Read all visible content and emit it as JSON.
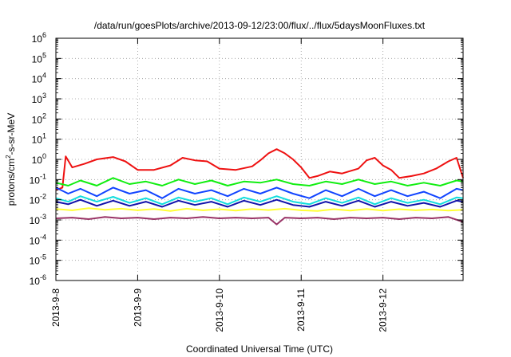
{
  "chart_data": {
    "type": "line",
    "title": "/data/run/goesPlots/archive/2013-09-12/23:00/flux/../flux/5daysMoonFluxes.txt",
    "xlabel": "Coordinated Universal Time (UTC)",
    "ylabel": {
      "base": "protons/cm",
      "sup": "2",
      "rest": "-s-sr-MeV"
    },
    "yscale": "log",
    "ylim_exp": [
      -6,
      6
    ],
    "y_ticks": [
      {
        "base": "10",
        "exp": "-6"
      },
      {
        "base": "10",
        "exp": "-5"
      },
      {
        "base": "10",
        "exp": "-4"
      },
      {
        "base": "10",
        "exp": "-3"
      },
      {
        "base": "10",
        "exp": "-2"
      },
      {
        "base": "10",
        "exp": "-1"
      },
      {
        "base": "10",
        "exp": "0"
      },
      {
        "base": "10",
        "exp": "1"
      },
      {
        "base": "10",
        "exp": "2"
      },
      {
        "base": "10",
        "exp": "3"
      },
      {
        "base": "10",
        "exp": "4"
      },
      {
        "base": "10",
        "exp": "5"
      },
      {
        "base": "10",
        "exp": "6"
      }
    ],
    "x_range_days": [
      0,
      4.98
    ],
    "x_ticks": [
      {
        "label": "2013-9-8",
        "day": 0
      },
      {
        "label": "2013-9-9",
        "day": 1
      },
      {
        "label": "2013-9-10",
        "day": 2
      },
      {
        "label": "2013-9-11",
        "day": 3
      },
      {
        "label": "2013-9-12",
        "day": 4
      }
    ],
    "grid": true,
    "series": [
      {
        "color": "#ee1111",
        "x": [
          0.0,
          0.08,
          0.12,
          0.2,
          0.35,
          0.5,
          0.7,
          0.85,
          1.0,
          1.2,
          1.4,
          1.55,
          1.7,
          1.85,
          2.0,
          2.2,
          2.4,
          2.5,
          2.6,
          2.7,
          2.8,
          2.9,
          3.0,
          3.1,
          3.2,
          3.35,
          3.5,
          3.7,
          3.8,
          3.9,
          4.0,
          4.1,
          4.2,
          4.35,
          4.5,
          4.65,
          4.8,
          4.9,
          4.98
        ],
        "y": [
          0.03,
          0.04,
          1.4,
          0.4,
          0.6,
          1.0,
          1.3,
          0.8,
          0.3,
          0.3,
          0.5,
          1.2,
          0.9,
          0.8,
          0.35,
          0.3,
          0.45,
          0.9,
          2.0,
          3.2,
          2.0,
          1.0,
          0.4,
          0.12,
          0.15,
          0.25,
          0.2,
          0.35,
          0.9,
          1.2,
          0.5,
          0.3,
          0.12,
          0.15,
          0.2,
          0.35,
          0.8,
          1.2,
          0.12
        ]
      },
      {
        "color": "#11ee11",
        "x": [
          0.0,
          0.15,
          0.3,
          0.5,
          0.7,
          0.9,
          1.1,
          1.3,
          1.5,
          1.7,
          1.9,
          2.1,
          2.3,
          2.5,
          2.7,
          2.9,
          3.1,
          3.3,
          3.5,
          3.7,
          3.9,
          4.1,
          4.3,
          4.5,
          4.7,
          4.9,
          4.98
        ],
        "y": [
          0.07,
          0.05,
          0.09,
          0.05,
          0.12,
          0.06,
          0.08,
          0.05,
          0.1,
          0.06,
          0.09,
          0.05,
          0.08,
          0.07,
          0.1,
          0.06,
          0.05,
          0.08,
          0.06,
          0.1,
          0.06,
          0.08,
          0.05,
          0.07,
          0.05,
          0.09,
          0.08
        ]
      },
      {
        "color": "#1144ff",
        "x": [
          0.0,
          0.15,
          0.3,
          0.5,
          0.7,
          0.9,
          1.1,
          1.3,
          1.5,
          1.7,
          1.9,
          2.1,
          2.3,
          2.5,
          2.7,
          2.9,
          3.1,
          3.3,
          3.5,
          3.7,
          3.9,
          4.1,
          4.3,
          4.5,
          4.7,
          4.9,
          4.98
        ],
        "y": [
          0.04,
          0.02,
          0.035,
          0.015,
          0.04,
          0.02,
          0.03,
          0.012,
          0.035,
          0.02,
          0.03,
          0.015,
          0.035,
          0.02,
          0.04,
          0.02,
          0.012,
          0.03,
          0.015,
          0.035,
          0.015,
          0.03,
          0.015,
          0.025,
          0.012,
          0.035,
          0.03
        ]
      },
      {
        "color": "#11dddd",
        "x": [
          0.0,
          0.15,
          0.3,
          0.5,
          0.7,
          0.9,
          1.1,
          1.3,
          1.5,
          1.7,
          1.9,
          2.1,
          2.3,
          2.5,
          2.7,
          2.9,
          3.1,
          3.3,
          3.5,
          3.7,
          3.9,
          4.1,
          4.3,
          4.5,
          4.7,
          4.9,
          4.98
        ],
        "y": [
          0.012,
          0.008,
          0.015,
          0.008,
          0.014,
          0.007,
          0.012,
          0.006,
          0.013,
          0.008,
          0.012,
          0.006,
          0.013,
          0.008,
          0.015,
          0.008,
          0.006,
          0.012,
          0.007,
          0.013,
          0.006,
          0.012,
          0.007,
          0.01,
          0.006,
          0.013,
          0.012
        ]
      },
      {
        "color": "#1111aa",
        "x": [
          0.0,
          0.15,
          0.3,
          0.5,
          0.7,
          0.9,
          1.1,
          1.3,
          1.5,
          1.7,
          1.9,
          2.1,
          2.3,
          2.5,
          2.7,
          2.9,
          3.1,
          3.3,
          3.5,
          3.7,
          3.9,
          4.1,
          4.3,
          4.5,
          4.7,
          4.9,
          4.98
        ],
        "y": [
          0.008,
          0.006,
          0.01,
          0.005,
          0.009,
          0.005,
          0.008,
          0.0045,
          0.009,
          0.0055,
          0.008,
          0.0045,
          0.009,
          0.0055,
          0.01,
          0.0055,
          0.0045,
          0.008,
          0.005,
          0.009,
          0.0045,
          0.008,
          0.005,
          0.007,
          0.0045,
          0.009,
          0.008
        ]
      },
      {
        "color": "#ffff33",
        "x": [
          0.0,
          0.2,
          0.4,
          0.6,
          0.8,
          1.0,
          1.2,
          1.4,
          1.6,
          1.8,
          2.0,
          2.2,
          2.4,
          2.6,
          2.8,
          3.0,
          3.2,
          3.4,
          3.6,
          3.8,
          4.0,
          4.2,
          4.4,
          4.6,
          4.8,
          4.98
        ],
        "y": [
          0.0035,
          0.003,
          0.0038,
          0.0032,
          0.0036,
          0.003,
          0.0035,
          0.0028,
          0.0036,
          0.003,
          0.0034,
          0.0029,
          0.0035,
          0.0031,
          0.0036,
          0.003,
          0.0028,
          0.0034,
          0.0029,
          0.0035,
          0.0029,
          0.0034,
          0.003,
          0.0033,
          0.0029,
          0.0032
        ]
      },
      {
        "color": "#993366",
        "x": [
          0.0,
          0.2,
          0.4,
          0.6,
          0.8,
          1.0,
          1.2,
          1.4,
          1.6,
          1.8,
          2.0,
          2.2,
          2.4,
          2.6,
          2.7,
          2.8,
          3.0,
          3.2,
          3.4,
          3.6,
          3.8,
          4.0,
          4.2,
          4.4,
          4.6,
          4.8,
          4.98
        ],
        "y": [
          0.0012,
          0.0013,
          0.0011,
          0.0014,
          0.0012,
          0.0013,
          0.0011,
          0.0013,
          0.0012,
          0.0014,
          0.0012,
          0.0013,
          0.0012,
          0.0013,
          0.0006,
          0.0013,
          0.0012,
          0.0013,
          0.0011,
          0.0013,
          0.0012,
          0.0013,
          0.0011,
          0.0013,
          0.0012,
          0.0014,
          0.0008
        ]
      }
    ]
  }
}
